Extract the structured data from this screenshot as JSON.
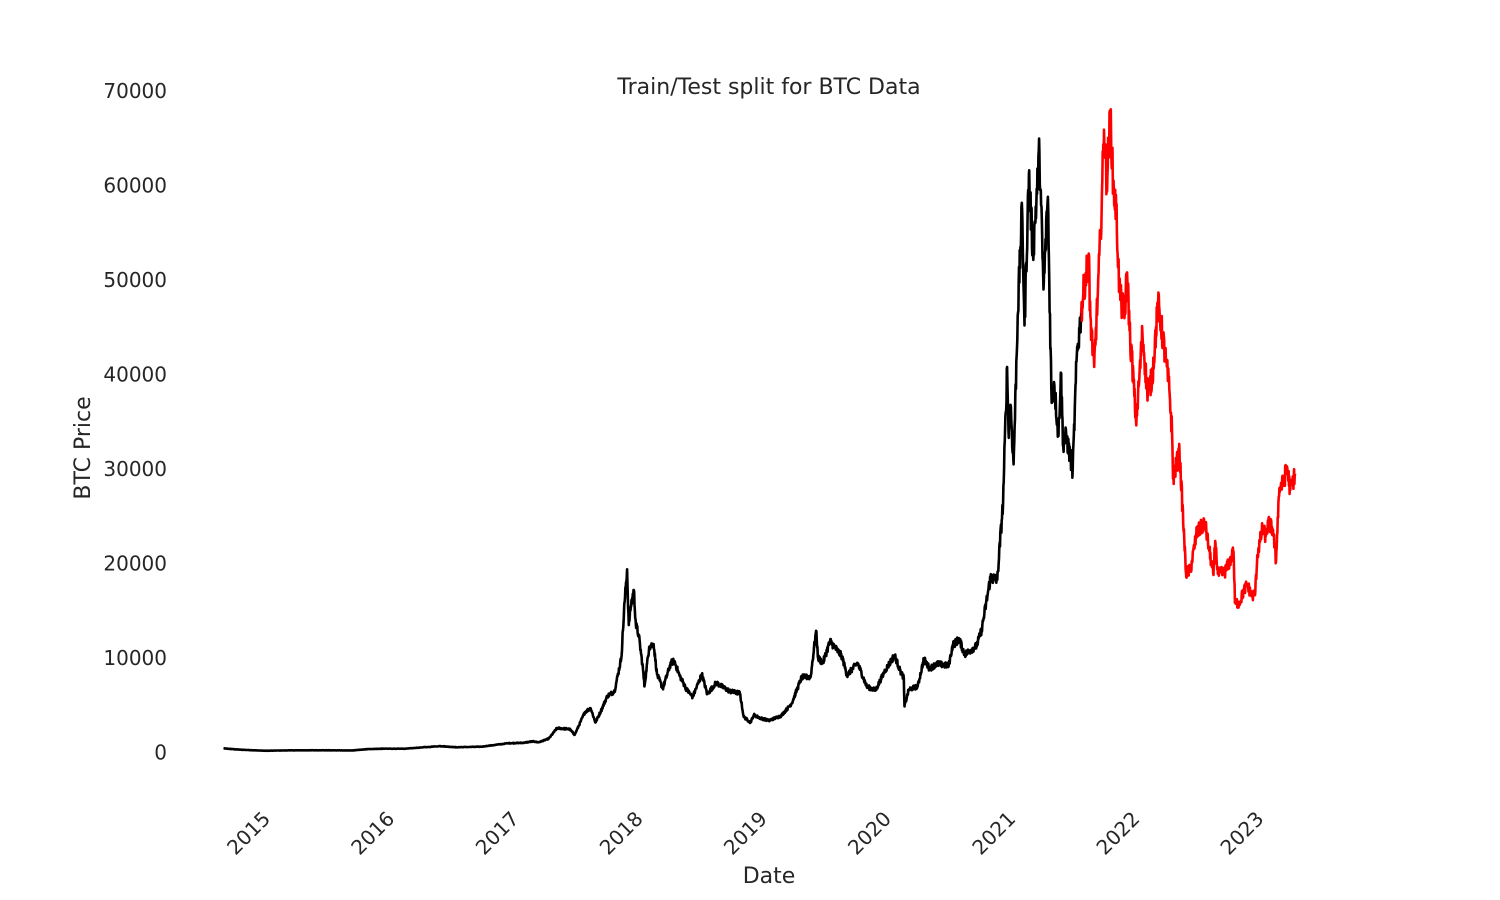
{
  "chart_data": {
    "type": "line",
    "title": "Train/Test split for BTC Data",
    "xlabel": "Date",
    "ylabel": "BTC Price",
    "xlim": [
      "2014-07-01",
      "2023-08-01"
    ],
    "ylim": [
      -5000,
      72000
    ],
    "y_ticks": [
      0,
      10000,
      20000,
      30000,
      40000,
      50000,
      60000,
      70000
    ],
    "x_ticks": [
      {
        "date": "2015-01-01",
        "label": "2015"
      },
      {
        "date": "2016-01-01",
        "label": "2016"
      },
      {
        "date": "2017-01-01",
        "label": "2017"
      },
      {
        "date": "2018-01-01",
        "label": "2018"
      },
      {
        "date": "2019-01-01",
        "label": "2019"
      },
      {
        "date": "2020-01-01",
        "label": "2020"
      },
      {
        "date": "2021-01-01",
        "label": "2021"
      },
      {
        "date": "2022-01-01",
        "label": "2022"
      },
      {
        "date": "2023-01-01",
        "label": "2023"
      }
    ],
    "grid": false,
    "legend": false,
    "series": [
      {
        "color": "#000000",
        "points": [
          [
            "2014-09-17",
            460
          ],
          [
            "2014-11-01",
            330
          ],
          [
            "2015-01-15",
            210
          ],
          [
            "2015-04-01",
            250
          ],
          [
            "2015-07-01",
            260
          ],
          [
            "2015-10-01",
            240
          ],
          [
            "2015-11-15",
            380
          ],
          [
            "2016-01-01",
            430
          ],
          [
            "2016-03-01",
            420
          ],
          [
            "2016-06-15",
            700
          ],
          [
            "2016-08-01",
            580
          ],
          [
            "2016-10-15",
            640
          ],
          [
            "2017-01-01",
            1000
          ],
          [
            "2017-02-15",
            1050
          ],
          [
            "2017-03-15",
            1200
          ],
          [
            "2017-04-01",
            1100
          ],
          [
            "2017-05-01",
            1500
          ],
          [
            "2017-05-25",
            2600
          ],
          [
            "2017-07-01",
            2500
          ],
          [
            "2017-07-16",
            1900
          ],
          [
            "2017-08-15",
            4300
          ],
          [
            "2017-09-01",
            4700
          ],
          [
            "2017-09-15",
            3200
          ],
          [
            "2017-10-01",
            4400
          ],
          [
            "2017-10-20",
            6000
          ],
          [
            "2017-11-10",
            6500
          ],
          [
            "2017-11-30",
            10000
          ],
          [
            "2017-12-10",
            16000
          ],
          [
            "2017-12-17",
            19400
          ],
          [
            "2017-12-22",
            13500
          ],
          [
            "2017-12-28",
            15500
          ],
          [
            "2018-01-06",
            17200
          ],
          [
            "2018-01-12",
            13500
          ],
          [
            "2018-01-20",
            12500
          ],
          [
            "2018-02-02",
            8800
          ],
          [
            "2018-02-06",
            7000
          ],
          [
            "2018-02-20",
            11200
          ],
          [
            "2018-03-05",
            11500
          ],
          [
            "2018-03-15",
            8300
          ],
          [
            "2018-04-01",
            6800
          ],
          [
            "2018-04-25",
            9500
          ],
          [
            "2018-05-05",
            9700
          ],
          [
            "2018-05-20",
            8200
          ],
          [
            "2018-06-10",
            6700
          ],
          [
            "2018-06-28",
            5900
          ],
          [
            "2018-07-25",
            8300
          ],
          [
            "2018-08-10",
            6200
          ],
          [
            "2018-09-05",
            7400
          ],
          [
            "2018-10-15",
            6500
          ],
          [
            "2018-11-14",
            6300
          ],
          [
            "2018-11-25",
            3800
          ],
          [
            "2018-12-15",
            3200
          ],
          [
            "2018-12-25",
            4000
          ],
          [
            "2019-01-10",
            3700
          ],
          [
            "2019-02-07",
            3400
          ],
          [
            "2019-03-15",
            3900
          ],
          [
            "2019-04-15",
            5200
          ],
          [
            "2019-05-15",
            8000
          ],
          [
            "2019-06-10",
            8000
          ],
          [
            "2019-06-26",
            12900
          ],
          [
            "2019-07-02",
            10000
          ],
          [
            "2019-07-16",
            9500
          ],
          [
            "2019-08-06",
            11800
          ],
          [
            "2019-09-10",
            10200
          ],
          [
            "2019-09-25",
            8200
          ],
          [
            "2019-10-26",
            9500
          ],
          [
            "2019-11-22",
            7000
          ],
          [
            "2019-12-18",
            6600
          ],
          [
            "2020-01-15",
            8700
          ],
          [
            "2020-02-12",
            10300
          ],
          [
            "2020-02-28",
            8700
          ],
          [
            "2020-03-10",
            7900
          ],
          [
            "2020-03-12",
            4900
          ],
          [
            "2020-03-25",
            6700
          ],
          [
            "2020-04-20",
            7000
          ],
          [
            "2020-05-08",
            9900
          ],
          [
            "2020-05-25",
            8900
          ],
          [
            "2020-06-15",
            9400
          ],
          [
            "2020-07-20",
            9200
          ],
          [
            "2020-08-01",
            11400
          ],
          [
            "2020-08-20",
            12000
          ],
          [
            "2020-09-05",
            10400
          ],
          [
            "2020-10-10",
            11300
          ],
          [
            "2020-10-25",
            13000
          ],
          [
            "2020-11-20",
            18500
          ],
          [
            "2020-12-10",
            18300
          ],
          [
            "2020-12-27",
            26500
          ],
          [
            "2021-01-08",
            40800
          ],
          [
            "2021-01-12",
            34000
          ],
          [
            "2021-01-18",
            36800
          ],
          [
            "2021-01-27",
            30500
          ],
          [
            "2021-02-08",
            46200
          ],
          [
            "2021-02-21",
            57500
          ],
          [
            "2021-02-28",
            45200
          ],
          [
            "2021-03-13",
            61200
          ],
          [
            "2021-03-25",
            52800
          ],
          [
            "2021-04-13",
            63500
          ],
          [
            "2021-04-25",
            49000
          ],
          [
            "2021-05-08",
            58800
          ],
          [
            "2021-05-12",
            49700
          ],
          [
            "2021-05-19",
            37000
          ],
          [
            "2021-05-26",
            39200
          ],
          [
            "2021-06-08",
            33500
          ],
          [
            "2021-06-15",
            40200
          ],
          [
            "2021-06-22",
            32500
          ],
          [
            "2021-07-01",
            33500
          ],
          [
            "2021-07-20",
            29900
          ],
          [
            "2021-08-01",
            42000
          ],
          [
            "2021-08-14",
            46500
          ]
        ]
      },
      {
        "color": "#ff0000",
        "points": [
          [
            "2021-08-14",
            46500
          ],
          [
            "2021-08-23",
            49500
          ],
          [
            "2021-09-06",
            52500
          ],
          [
            "2021-09-08",
            46800
          ],
          [
            "2021-09-21",
            40800
          ],
          [
            "2021-10-01",
            48000
          ],
          [
            "2021-10-10",
            55000
          ],
          [
            "2021-10-20",
            65900
          ],
          [
            "2021-10-28",
            60500
          ],
          [
            "2021-11-08",
            67500
          ],
          [
            "2021-11-16",
            60000
          ],
          [
            "2021-11-25",
            57300
          ],
          [
            "2021-12-04",
            49200
          ],
          [
            "2021-12-10",
            47500
          ],
          [
            "2021-12-20",
            46500
          ],
          [
            "2021-12-27",
            50800
          ],
          [
            "2022-01-05",
            43500
          ],
          [
            "2022-01-10",
            41800
          ],
          [
            "2022-01-22",
            35100
          ],
          [
            "2022-01-28",
            37600
          ],
          [
            "2022-02-10",
            44400
          ],
          [
            "2022-02-24",
            38300
          ],
          [
            "2022-03-10",
            39400
          ],
          [
            "2022-03-28",
            47400
          ],
          [
            "2022-04-05",
            45500
          ],
          [
            "2022-04-20",
            41400
          ],
          [
            "2022-04-30",
            38500
          ],
          [
            "2022-05-08",
            34000
          ],
          [
            "2022-05-11",
            29000
          ],
          [
            "2022-05-30",
            31800
          ],
          [
            "2022-06-13",
            22500
          ],
          [
            "2022-06-18",
            19000
          ],
          [
            "2022-07-01",
            19300
          ],
          [
            "2022-07-20",
            23300
          ],
          [
            "2022-08-13",
            24300
          ],
          [
            "2022-08-25",
            21500
          ],
          [
            "2022-09-07",
            18800
          ],
          [
            "2022-09-12",
            22400
          ],
          [
            "2022-09-20",
            18900
          ],
          [
            "2022-10-10",
            19100
          ],
          [
            "2022-10-25",
            20200
          ],
          [
            "2022-11-05",
            21300
          ],
          [
            "2022-11-09",
            15900
          ],
          [
            "2022-11-22",
            15800
          ],
          [
            "2022-12-05",
            17100
          ],
          [
            "2022-12-15",
            17800
          ],
          [
            "2022-12-30",
            16500
          ],
          [
            "2023-01-08",
            17000
          ],
          [
            "2023-01-14",
            20900
          ],
          [
            "2023-01-29",
            23700
          ],
          [
            "2023-02-08",
            22900
          ],
          [
            "2023-02-15",
            24300
          ],
          [
            "2023-03-01",
            23600
          ],
          [
            "2023-03-10",
            20200
          ],
          [
            "2023-03-15",
            24900
          ],
          [
            "2023-03-20",
            28000
          ],
          [
            "2023-04-01",
            28500
          ],
          [
            "2023-04-11",
            30300
          ],
          [
            "2023-04-21",
            27800
          ],
          [
            "2023-05-05",
            29500
          ]
        ]
      }
    ]
  }
}
